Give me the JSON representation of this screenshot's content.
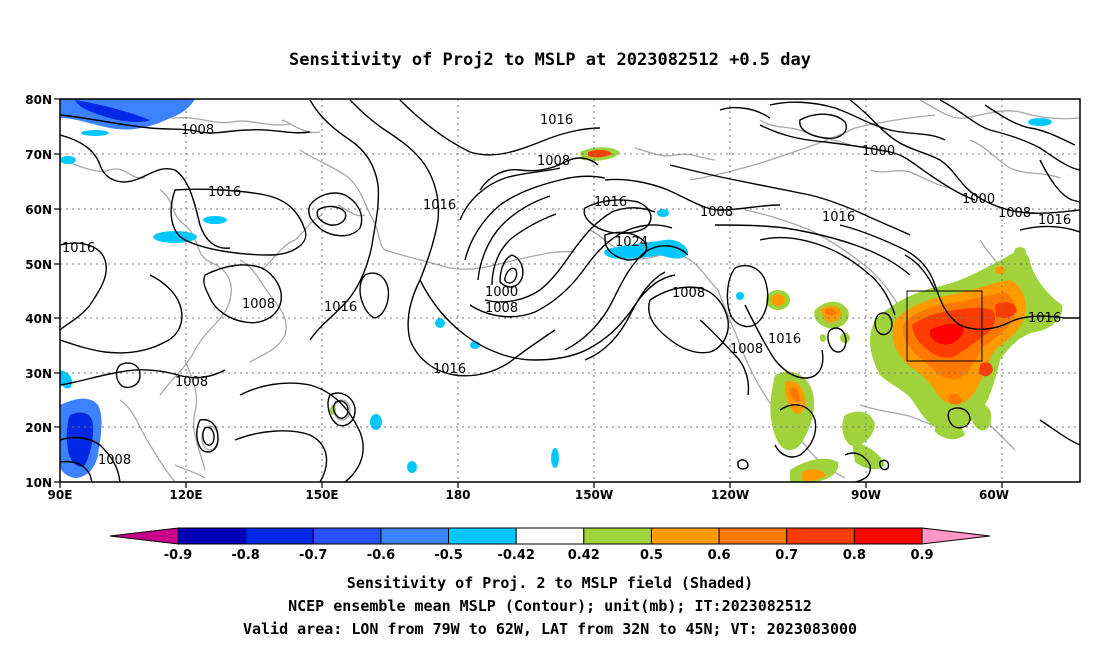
{
  "title": "Sensitivity of Proj2 to MSLP at 2023082512 +0.5 day",
  "lat_labels": [
    "80N",
    "70N",
    "60N",
    "50N",
    "40N",
    "30N",
    "20N",
    "10N"
  ],
  "lon_labels": [
    "90E",
    "120E",
    "150E",
    "180",
    "150W",
    "120W",
    "90W",
    "60W"
  ],
  "contour_labels": [
    "1008",
    "1016",
    "1016",
    "1008",
    "1016",
    "1008",
    "1016",
    "1016",
    "1000",
    "1000",
    "1008",
    "1016",
    "1008",
    "1000",
    "1008",
    "1024",
    "1008",
    "1016",
    "1016",
    "1008",
    "1008",
    "1016",
    "1008",
    "1016",
    "1016",
    "1008",
    "1008"
  ],
  "colorbar": {
    "labels": [
      "-0.9",
      "-0.8",
      "-0.7",
      "-0.6",
      "-0.5",
      "-0.42",
      "0.42",
      "0.5",
      "0.6",
      "0.7",
      "0.8",
      "0.9"
    ],
    "colors": [
      "#c8008c",
      "#0000b4",
      "#0028e6",
      "#2850ff",
      "#3c82ff",
      "#00c8ff",
      "#ffffff",
      "#a0d23c",
      "#ff9b00",
      "#ff7800",
      "#ff3c00",
      "#ff0000",
      "#ff96c8"
    ]
  },
  "valid_area": {
    "lon": [
      "79W",
      "62W"
    ],
    "lat": [
      "32N",
      "45N"
    ]
  },
  "captions": [
    "Sensitivity of Proj. 2 to MSLP field (Shaded)",
    "NCEP ensemble mean MSLP (Contour); unit(mb); IT:2023082512",
    "Valid area: LON from 79W to 62W, LAT from 32N to 45N; VT: 2023083000"
  ]
}
